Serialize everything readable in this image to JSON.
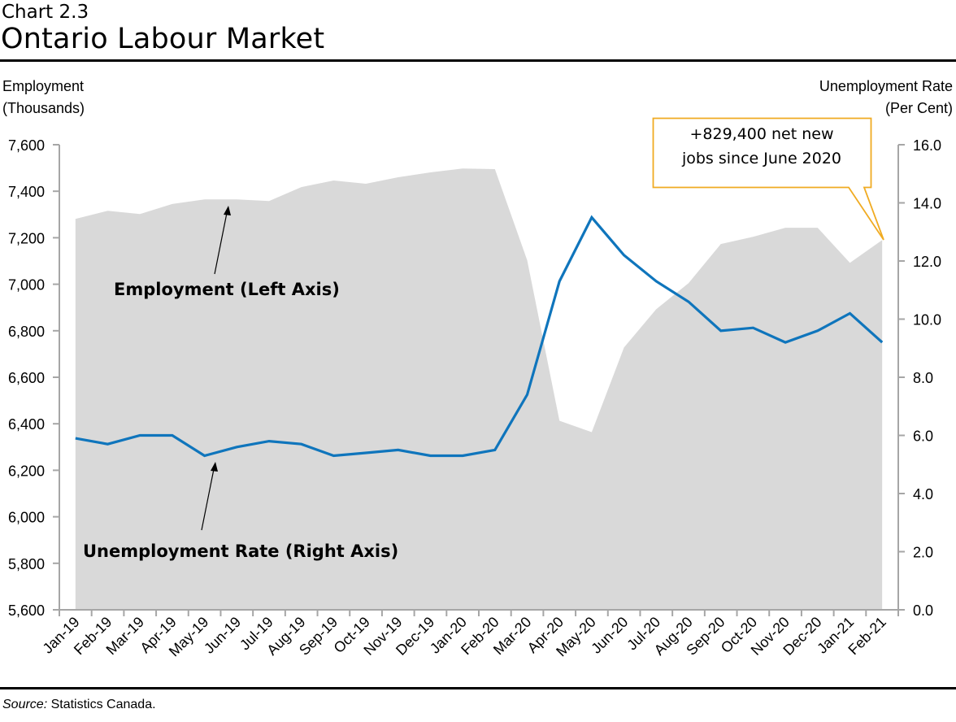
{
  "header": {
    "chart_number": "Chart 2.3",
    "title": "Ontario Labour Market"
  },
  "axes": {
    "left_title_line1": "Employment",
    "left_title_line2": "(Thousands)",
    "right_title_line1": "Unemployment Rate",
    "right_title_line2": "(Per Cent)"
  },
  "annotations": {
    "employment_label": "Employment (Left Axis)",
    "unemployment_label": "Unemployment Rate (Right Axis)",
    "callout_line1": "+829,400 net new",
    "callout_line2": "jobs since June 2020"
  },
  "footer": {
    "source_prefix": "Source:",
    "source_text": " Statistics Canada."
  },
  "colors": {
    "employment_area": "#D9D9D9",
    "unemployment_line": "#0F75BC",
    "callout_border": "#F0AB22",
    "axis": "#A6A6A6"
  },
  "chart_data": {
    "type": "area+line",
    "title": "Ontario Labour Market",
    "subtitle": "Chart 2.3",
    "xlabel": "",
    "ylabel": "Employment (Thousands)",
    "y2label": "Unemployment Rate (Per Cent)",
    "ylim": [
      5600,
      7600
    ],
    "y2lim": [
      0,
      16
    ],
    "yticks": [
      "5,600",
      "5,800",
      "6,000",
      "6,200",
      "6,400",
      "6,600",
      "6,800",
      "7,000",
      "7,200",
      "7,400",
      "7,600"
    ],
    "y2ticks": [
      "0.0",
      "2.0",
      "4.0",
      "6.0",
      "8.0",
      "10.0",
      "12.0",
      "14.0",
      "16.0"
    ],
    "grid": false,
    "legend": "inline labels with arrows",
    "categories": [
      "Jan-19",
      "Feb-19",
      "Mar-19",
      "Apr-19",
      "May-19",
      "Jun-19",
      "Jul-19",
      "Aug-19",
      "Sep-19",
      "Oct-19",
      "Nov-19",
      "Dec-19",
      "Jan-20",
      "Feb-20",
      "Mar-20",
      "Apr-20",
      "May-20",
      "Jun-20",
      "Jul-20",
      "Aug-20",
      "Sep-20",
      "Oct-20",
      "Nov-20",
      "Dec-20",
      "Jan-21",
      "Feb-21"
    ],
    "series": [
      {
        "name": "Employment (Left Axis)",
        "type": "area",
        "axis": "left",
        "values": [
          7281,
          7316,
          7302,
          7345,
          7365,
          7365,
          7358,
          7418,
          7446,
          7432,
          7460,
          7481,
          7498,
          7495,
          7103,
          6413,
          6364,
          6728,
          6893,
          7005,
          7173,
          7204,
          7243,
          7243,
          7092,
          7190
        ]
      },
      {
        "name": "Unemployment Rate (Right Axis)",
        "type": "line",
        "axis": "right",
        "values": [
          5.9,
          5.7,
          6.0,
          6.0,
          5.3,
          5.6,
          5.8,
          5.7,
          5.3,
          5.4,
          5.5,
          5.3,
          5.3,
          5.5,
          7.4,
          11.3,
          13.5,
          12.2,
          11.3,
          10.6,
          9.6,
          9.7,
          9.2,
          9.6,
          10.2,
          9.2
        ]
      }
    ],
    "annotations": [
      "+829,400 net new jobs since June 2020"
    ]
  }
}
